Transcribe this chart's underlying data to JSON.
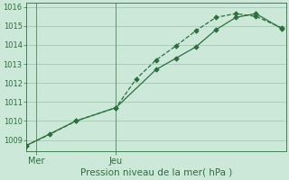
{
  "background_color": "#cce8d8",
  "grid_color": "#aaccb8",
  "line_color": "#2d6e3e",
  "marker_color": "#2d6e3e",
  "xlabel_label": "Pression niveau de la mer( hPa )",
  "xtick_labels": [
    "Mer",
    "Jeu"
  ],
  "xtick_positions": [
    0.5,
    4.5
  ],
  "ylim": [
    1008.4,
    1016.2
  ],
  "yticks": [
    1009,
    1010,
    1011,
    1012,
    1013,
    1014,
    1015,
    1016
  ],
  "xlim": [
    0,
    13
  ],
  "vline_positions": [
    0.5,
    4.5
  ],
  "series1_x": [
    0.0,
    1.2,
    2.5,
    4.5,
    5.5,
    6.5,
    7.5,
    8.5,
    9.5,
    10.5,
    11.5,
    12.8
  ],
  "series1_y": [
    1008.7,
    1009.3,
    1010.0,
    1010.7,
    1012.2,
    1013.2,
    1013.95,
    1014.75,
    1015.45,
    1015.65,
    1015.5,
    1014.9
  ],
  "series2_x": [
    0.0,
    2.5,
    4.5,
    6.5,
    7.5,
    8.5,
    9.5,
    10.5,
    11.5,
    12.8
  ],
  "series2_y": [
    1008.7,
    1010.0,
    1010.7,
    1012.7,
    1013.3,
    1013.9,
    1014.8,
    1015.45,
    1015.65,
    1014.85
  ],
  "ylabel_fontsize": 7,
  "tick_fontsize": 6,
  "xlabel_fontsize": 7.5
}
